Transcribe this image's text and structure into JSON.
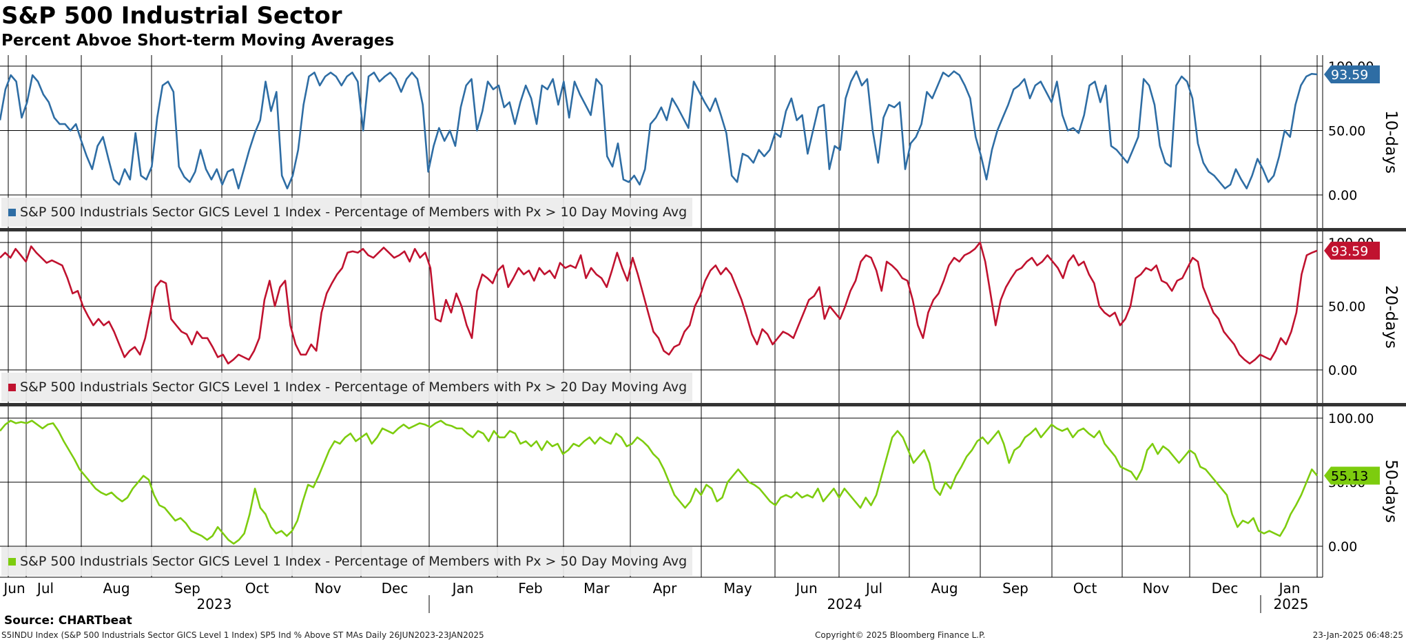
{
  "title": "S&P 500 Industrial Sector",
  "subtitle": "Percent Abvoe Short-term Moving Averages",
  "source": "Source: CHARTbeat",
  "footer": {
    "left": "S5INDU Index (S&P 500 Industrials Sector GICS Level 1 Index) SP5 Ind % Above ST MAs  Daily 26JUN2023-23JAN2025",
    "center": "Copyright© 2025 Bloomberg Finance L.P.",
    "right": "23-Jan-2025 06:48:25"
  },
  "colors": {
    "ma10": "#2e6da4",
    "ma20": "#c0122f",
    "ma50": "#7dcc0e"
  },
  "chart_data": {
    "type": "line",
    "date_range": [
      "2023-06-26",
      "2025-01-23"
    ],
    "x_labels": {
      "months": [
        "Jun",
        "Jul",
        "Aug",
        "Sep",
        "Oct",
        "Nov",
        "Dec",
        "Jan",
        "Feb",
        "Mar",
        "Apr",
        "May",
        "Jun",
        "Jul",
        "Aug",
        "Sep",
        "Oct",
        "Nov",
        "Dec",
        "Jan"
      ],
      "years": [
        "2023",
        "2024",
        "2025"
      ]
    },
    "ylim": [
      0,
      100
    ],
    "yticks": [
      "0.00",
      "50.00",
      "100.00"
    ],
    "grid": true,
    "panels": [
      {
        "key": "ma10",
        "side_label": "10-days",
        "legend": "S&P 500 Industrials Sector GICS Level 1 Index - Percentage of Members with Px > 10 Day Moving Avg",
        "last_value": "93.59",
        "values": [
          58,
          82,
          93,
          88,
          60,
          72,
          93,
          88,
          78,
          72,
          60,
          55,
          55,
          50,
          55,
          42,
          30,
          20,
          38,
          45,
          28,
          12,
          8,
          20,
          12,
          48,
          15,
          12,
          22,
          60,
          85,
          88,
          80,
          22,
          14,
          10,
          18,
          35,
          20,
          12,
          20,
          8,
          18,
          20,
          5,
          20,
          35,
          48,
          58,
          88,
          65,
          80,
          15,
          5,
          15,
          35,
          70,
          92,
          95,
          85,
          92,
          95,
          92,
          85,
          92,
          95,
          88,
          50,
          92,
          95,
          88,
          92,
          95,
          90,
          80,
          90,
          95,
          90,
          70,
          18,
          38,
          52,
          42,
          50,
          38,
          68,
          85,
          90,
          50,
          65,
          88,
          82,
          85,
          68,
          72,
          55,
          72,
          85,
          75,
          55,
          85,
          82,
          90,
          70,
          88,
          60,
          88,
          78,
          70,
          62,
          90,
          85,
          30,
          22,
          40,
          12,
          10,
          15,
          8,
          20,
          55,
          60,
          68,
          58,
          75,
          68,
          60,
          52,
          88,
          80,
          72,
          65,
          75,
          62,
          48,
          15,
          10,
          32,
          30,
          25,
          35,
          30,
          35,
          48,
          45,
          65,
          75,
          58,
          62,
          32,
          50,
          68,
          70,
          20,
          38,
          35,
          75,
          88,
          96,
          85,
          90,
          50,
          25,
          60,
          70,
          68,
          72,
          20,
          40,
          45,
          55,
          80,
          75,
          85,
          95,
          92,
          96,
          93,
          85,
          75,
          45,
          30,
          12,
          35,
          50,
          60,
          70,
          82,
          85,
          90,
          75,
          85,
          88,
          80,
          72,
          88,
          62,
          50,
          52,
          48,
          62,
          85,
          88,
          72,
          85,
          38,
          35,
          30,
          25,
          35,
          45,
          90,
          85,
          70,
          38,
          25,
          22,
          85,
          92,
          88,
          75,
          40,
          25,
          18,
          15,
          10,
          5,
          8,
          20,
          12,
          5,
          15,
          28,
          20,
          10,
          15,
          30,
          50,
          45,
          70,
          85,
          92,
          94,
          93.59
        ]
      },
      {
        "key": "ma20",
        "side_label": "20-days",
        "legend": "S&P 500 Industrials Sector GICS Level 1 Index - Percentage of Members with Px > 20 Day Moving Avg",
        "last_value": "93.59",
        "values": [
          88,
          92,
          88,
          95,
          90,
          85,
          97,
          92,
          88,
          84,
          86,
          84,
          82,
          72,
          60,
          62,
          50,
          42,
          35,
          40,
          35,
          38,
          30,
          20,
          10,
          15,
          18,
          12,
          25,
          45,
          65,
          70,
          68,
          40,
          35,
          30,
          28,
          20,
          30,
          25,
          25,
          18,
          10,
          12,
          5,
          8,
          12,
          10,
          8,
          15,
          25,
          55,
          70,
          50,
          65,
          70,
          35,
          20,
          12,
          12,
          20,
          15,
          45,
          60,
          68,
          75,
          80,
          92,
          93,
          92,
          95,
          90,
          88,
          92,
          96,
          92,
          88,
          90,
          93,
          85,
          95,
          88,
          92,
          80,
          40,
          38,
          55,
          45,
          60,
          50,
          35,
          25,
          62,
          75,
          72,
          68,
          78,
          82,
          65,
          72,
          80,
          75,
          78,
          70,
          80,
          75,
          78,
          72,
          84,
          80,
          82,
          80,
          90,
          72,
          80,
          75,
          72,
          65,
          78,
          92,
          80,
          70,
          88,
          75,
          60,
          45,
          30,
          25,
          15,
          12,
          18,
          20,
          30,
          35,
          50,
          58,
          70,
          78,
          82,
          75,
          80,
          75,
          65,
          55,
          42,
          28,
          20,
          32,
          28,
          20,
          25,
          30,
          28,
          25,
          35,
          45,
          55,
          58,
          65,
          40,
          50,
          45,
          40,
          50,
          62,
          70,
          85,
          90,
          88,
          78,
          62,
          85,
          82,
          78,
          72,
          70,
          55,
          35,
          25,
          45,
          55,
          60,
          70,
          82,
          88,
          85,
          90,
          92,
          95,
          100,
          85,
          60,
          35,
          55,
          65,
          72,
          78,
          80,
          85,
          88,
          82,
          85,
          90,
          85,
          80,
          72,
          85,
          90,
          82,
          85,
          75,
          68,
          50,
          45,
          42,
          45,
          35,
          40,
          50,
          72,
          75,
          80,
          78,
          82,
          70,
          68,
          62,
          70,
          72,
          80,
          88,
          85,
          65,
          55,
          45,
          40,
          30,
          25,
          20,
          12,
          8,
          5,
          8,
          12,
          10,
          8,
          15,
          25,
          20,
          30,
          45,
          75,
          90,
          92,
          93.59
        ]
      },
      {
        "key": "ma50",
        "side_label": "50-days",
        "legend": "S&P 500 Industrials Sector GICS Level 1 Index - Percentage of Members with Px > 50 Day Moving Avg",
        "last_value": "55.13",
        "values": [
          90,
          95,
          98,
          96,
          97,
          96,
          98,
          95,
          92,
          95,
          96,
          90,
          82,
          75,
          68,
          60,
          55,
          50,
          45,
          42,
          40,
          42,
          38,
          35,
          38,
          45,
          50,
          55,
          52,
          40,
          32,
          30,
          25,
          20,
          22,
          18,
          12,
          10,
          8,
          5,
          8,
          15,
          10,
          5,
          2,
          5,
          10,
          25,
          45,
          30,
          25,
          15,
          10,
          12,
          8,
          12,
          20,
          35,
          48,
          46,
          55,
          65,
          75,
          82,
          80,
          85,
          88,
          82,
          85,
          88,
          80,
          85,
          92,
          90,
          88,
          92,
          95,
          92,
          94,
          96,
          95,
          93,
          96,
          98,
          95,
          94,
          92,
          92,
          88,
          85,
          90,
          88,
          82,
          90,
          85,
          85,
          90,
          88,
          80,
          82,
          78,
          82,
          75,
          82,
          78,
          80,
          72,
          75,
          80,
          78,
          82,
          85,
          80,
          85,
          82,
          80,
          88,
          85,
          78,
          80,
          85,
          82,
          78,
          72,
          68,
          60,
          50,
          40,
          35,
          30,
          35,
          45,
          40,
          48,
          45,
          35,
          38,
          50,
          55,
          60,
          55,
          50,
          48,
          45,
          40,
          35,
          32,
          38,
          40,
          38,
          42,
          38,
          40,
          38,
          45,
          35,
          40,
          45,
          38,
          45,
          40,
          35,
          30,
          38,
          32,
          40,
          55,
          70,
          85,
          90,
          85,
          75,
          65,
          70,
          75,
          65,
          45,
          40,
          50,
          45,
          55,
          62,
          70,
          75,
          82,
          85,
          80,
          85,
          90,
          80,
          65,
          75,
          78,
          85,
          88,
          92,
          85,
          90,
          95,
          92,
          90,
          92,
          85,
          90,
          92,
          88,
          85,
          90,
          80,
          75,
          70,
          62,
          60,
          58,
          52,
          60,
          75,
          80,
          72,
          78,
          75,
          70,
          65,
          70,
          75,
          72,
          62,
          60,
          55,
          50,
          45,
          40,
          25,
          15,
          20,
          18,
          22,
          12,
          10,
          12,
          10,
          8,
          15,
          25,
          32,
          40,
          50,
          60,
          55.13
        ]
      }
    ]
  }
}
